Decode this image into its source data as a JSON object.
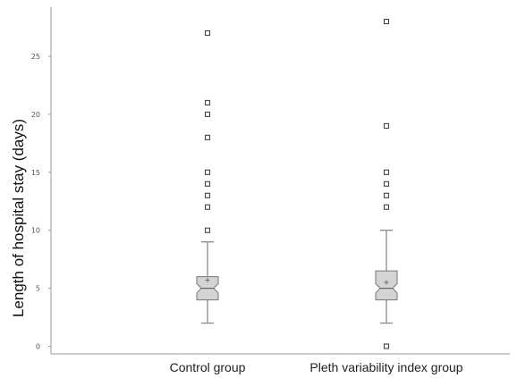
{
  "chart_data": {
    "type": "box",
    "title": "",
    "ylabel": "Length of hospital stay (days)",
    "xlabel": "",
    "categories": [
      "Control group",
      "Pleth variability index group"
    ],
    "ylim": [
      0,
      28.5
    ],
    "yticks": [
      0,
      5,
      10,
      15,
      20,
      25
    ],
    "notched": true,
    "grid": false,
    "groups": [
      {
        "name": "Control group",
        "whisker_low": 2,
        "q1": 4,
        "median": 5,
        "q3": 6,
        "whisker_high": 9,
        "mean": 5.7,
        "notch": [
          4.6,
          5.4
        ],
        "outliers": [
          10,
          12,
          13,
          14,
          15,
          18,
          20,
          21,
          27
        ]
      },
      {
        "name": "Pleth variability index group",
        "whisker_low": 2,
        "q1": 4,
        "median": 5,
        "q3": 6.5,
        "whisker_high": 10,
        "mean": 5.5,
        "notch": [
          4.6,
          5.4
        ],
        "outliers": [
          0,
          12,
          13,
          14,
          15,
          19,
          28
        ]
      }
    ],
    "colors": {
      "box_fill": "#d4d4d4",
      "box_stroke": "#777777",
      "outlier": "#444444"
    }
  }
}
